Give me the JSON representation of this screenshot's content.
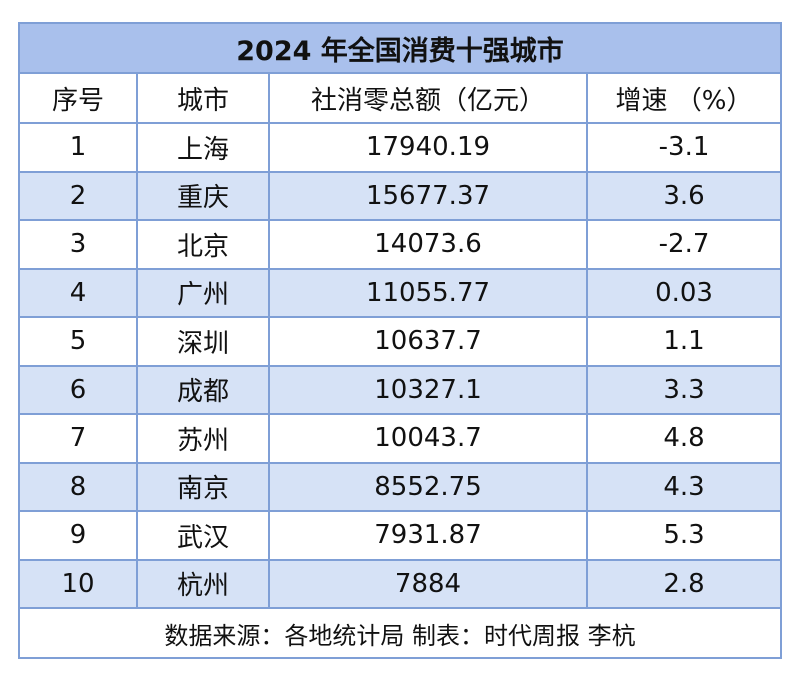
{
  "chart_data": {
    "type": "table",
    "title": "2024 年全国消费十强城市",
    "columns": [
      "序号",
      "城市",
      "社消零总额（亿元）",
      "增速 （%）"
    ],
    "rows": [
      {
        "rank": "1",
        "city": "上海",
        "total": "17940.19",
        "growth": "-3.1"
      },
      {
        "rank": "2",
        "city": "重庆",
        "total": "15677.37",
        "growth": "3.6"
      },
      {
        "rank": "3",
        "city": "北京",
        "total": "14073.6",
        "growth": "-2.7"
      },
      {
        "rank": "4",
        "city": "广州",
        "total": "11055.77",
        "growth": "0.03"
      },
      {
        "rank": "5",
        "city": "深圳",
        "total": "10637.7",
        "growth": "1.1"
      },
      {
        "rank": "6",
        "city": "成都",
        "total": "10327.1",
        "growth": "3.3"
      },
      {
        "rank": "7",
        "city": "苏州",
        "total": "10043.7",
        "growth": "4.8"
      },
      {
        "rank": "8",
        "city": "南京",
        "total": "8552.75",
        "growth": "4.3"
      },
      {
        "rank": "9",
        "city": "武汉",
        "total": "7931.87",
        "growth": "5.3"
      },
      {
        "rank": "10",
        "city": "杭州",
        "total": "7884",
        "growth": "2.8"
      }
    ],
    "footer": "数据来源：各地统计局 制表：时代周报 李杭"
  },
  "colors": {
    "border": "#7f9fd6",
    "title_bg": "#a9c0ec",
    "alt_row_bg": "#d6e2f6"
  }
}
